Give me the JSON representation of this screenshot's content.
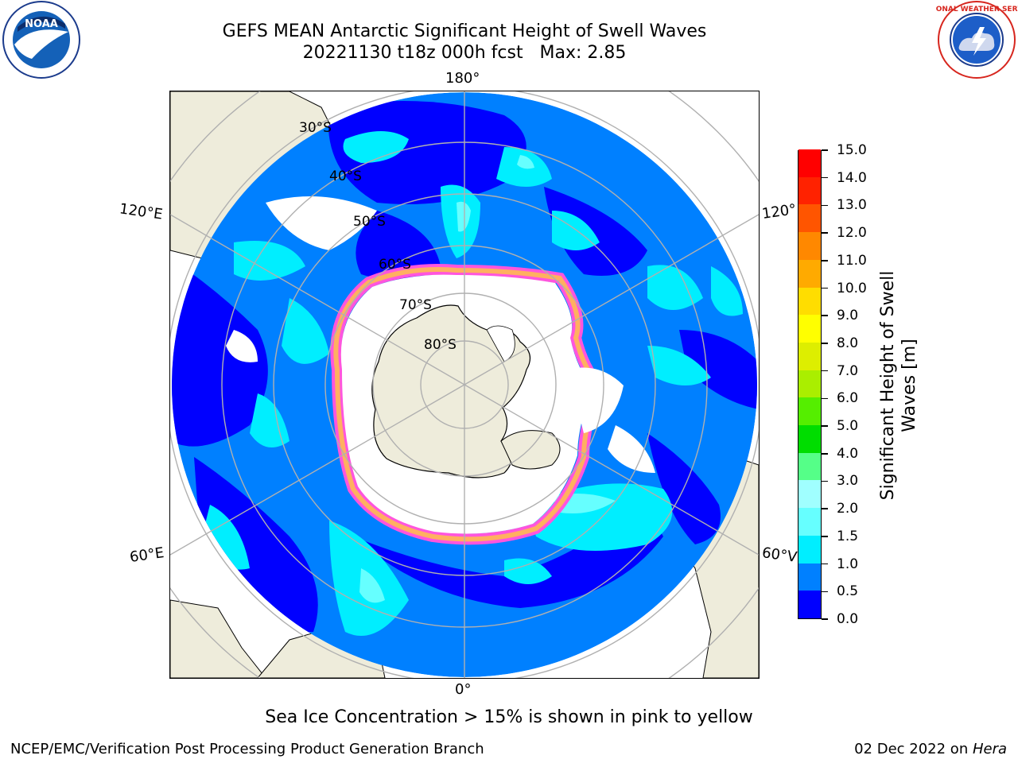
{
  "title": {
    "line1": "GEFS MEAN Antarctic Significant Height of Swell Waves",
    "line2": "20221130 t18z 000h fcst   Max: 2.85"
  },
  "logos": {
    "left": "noaa-logo",
    "right": "national-weather-service-logo",
    "left_text": "NOAA",
    "right_text": "NATIONAL WEATHER SERVICE"
  },
  "map": {
    "projection": "south-polar-stereographic",
    "longitude_labels": {
      "top": "180°",
      "bottom": "0°",
      "upper_left": "120°E",
      "lower_left": "60°E",
      "upper_right": "120°",
      "lower_right": "60°V"
    },
    "latitude_labels": [
      "30°S",
      "40°S",
      "50°S",
      "60°S",
      "70°S",
      "80°S"
    ],
    "colors": {
      "land": "#eeecdb",
      "sea_ice": "#ffffff",
      "grid": "#b0b0b0",
      "ice_edge": "#ff55dd",
      "ice_edge_inner": "#ffb060"
    }
  },
  "colorbar": {
    "title": "Significant Height of Swell Waves [m]",
    "tick_labels": [
      "0.0",
      "0.5",
      "1.0",
      "1.5",
      "2.0",
      "3.0",
      "4.0",
      "5.0",
      "6.0",
      "7.0",
      "8.0",
      "9.0",
      "10.0",
      "11.0",
      "12.0",
      "13.0",
      "14.0",
      "15.0"
    ],
    "colors": [
      "#0000ff",
      "#0080ff",
      "#00eeff",
      "#66ffff",
      "#a0ffff",
      "#55ff88",
      "#00dd00",
      "#55ee00",
      "#aaee00",
      "#ddee00",
      "#ffff00",
      "#ffdd00",
      "#ffaa00",
      "#ff8800",
      "#ff5500",
      "#ff2200",
      "#ff0000"
    ]
  },
  "note": "Sea Ice Concentration > 15% is shown in pink to yellow",
  "footer": {
    "left": "NCEP/EMC/Verification Post Processing Product Generation Branch",
    "right_prefix": "02 Dec 2022 on ",
    "right_machine": "Hera"
  }
}
